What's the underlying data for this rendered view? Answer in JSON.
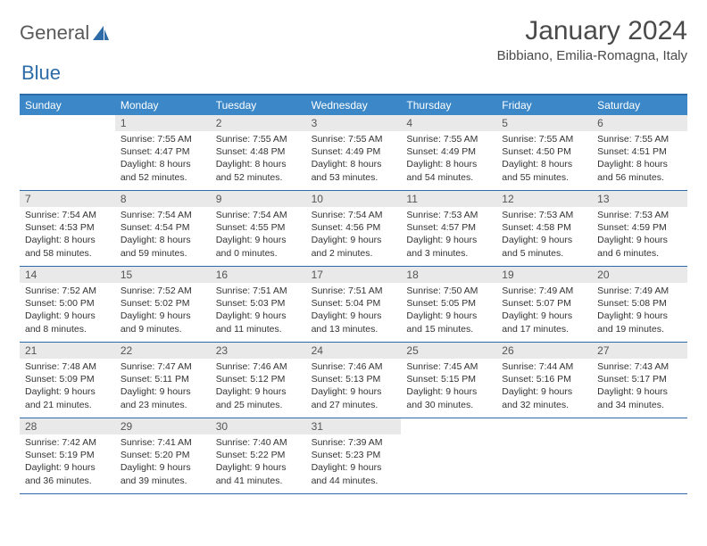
{
  "logo": {
    "text1": "General",
    "text2": "Blue"
  },
  "header": {
    "month": "January 2024",
    "location": "Bibbiano, Emilia-Romagna, Italy"
  },
  "colors": {
    "header_bg": "#3b87c8",
    "border": "#2d6ca8",
    "daynum_bg": "#e9e9e9",
    "text": "#333333"
  },
  "days": [
    "Sunday",
    "Monday",
    "Tuesday",
    "Wednesday",
    "Thursday",
    "Friday",
    "Saturday"
  ],
  "weeks": [
    [
      null,
      {
        "n": "1",
        "sr": "7:55 AM",
        "ss": "4:47 PM",
        "dl": "8 hours and 52 minutes."
      },
      {
        "n": "2",
        "sr": "7:55 AM",
        "ss": "4:48 PM",
        "dl": "8 hours and 52 minutes."
      },
      {
        "n": "3",
        "sr": "7:55 AM",
        "ss": "4:49 PM",
        "dl": "8 hours and 53 minutes."
      },
      {
        "n": "4",
        "sr": "7:55 AM",
        "ss": "4:49 PM",
        "dl": "8 hours and 54 minutes."
      },
      {
        "n": "5",
        "sr": "7:55 AM",
        "ss": "4:50 PM",
        "dl": "8 hours and 55 minutes."
      },
      {
        "n": "6",
        "sr": "7:55 AM",
        "ss": "4:51 PM",
        "dl": "8 hours and 56 minutes."
      }
    ],
    [
      {
        "n": "7",
        "sr": "7:54 AM",
        "ss": "4:53 PM",
        "dl": "8 hours and 58 minutes."
      },
      {
        "n": "8",
        "sr": "7:54 AM",
        "ss": "4:54 PM",
        "dl": "8 hours and 59 minutes."
      },
      {
        "n": "9",
        "sr": "7:54 AM",
        "ss": "4:55 PM",
        "dl": "9 hours and 0 minutes."
      },
      {
        "n": "10",
        "sr": "7:54 AM",
        "ss": "4:56 PM",
        "dl": "9 hours and 2 minutes."
      },
      {
        "n": "11",
        "sr": "7:53 AM",
        "ss": "4:57 PM",
        "dl": "9 hours and 3 minutes."
      },
      {
        "n": "12",
        "sr": "7:53 AM",
        "ss": "4:58 PM",
        "dl": "9 hours and 5 minutes."
      },
      {
        "n": "13",
        "sr": "7:53 AM",
        "ss": "4:59 PM",
        "dl": "9 hours and 6 minutes."
      }
    ],
    [
      {
        "n": "14",
        "sr": "7:52 AM",
        "ss": "5:00 PM",
        "dl": "9 hours and 8 minutes."
      },
      {
        "n": "15",
        "sr": "7:52 AM",
        "ss": "5:02 PM",
        "dl": "9 hours and 9 minutes."
      },
      {
        "n": "16",
        "sr": "7:51 AM",
        "ss": "5:03 PM",
        "dl": "9 hours and 11 minutes."
      },
      {
        "n": "17",
        "sr": "7:51 AM",
        "ss": "5:04 PM",
        "dl": "9 hours and 13 minutes."
      },
      {
        "n": "18",
        "sr": "7:50 AM",
        "ss": "5:05 PM",
        "dl": "9 hours and 15 minutes."
      },
      {
        "n": "19",
        "sr": "7:49 AM",
        "ss": "5:07 PM",
        "dl": "9 hours and 17 minutes."
      },
      {
        "n": "20",
        "sr": "7:49 AM",
        "ss": "5:08 PM",
        "dl": "9 hours and 19 minutes."
      }
    ],
    [
      {
        "n": "21",
        "sr": "7:48 AM",
        "ss": "5:09 PM",
        "dl": "9 hours and 21 minutes."
      },
      {
        "n": "22",
        "sr": "7:47 AM",
        "ss": "5:11 PM",
        "dl": "9 hours and 23 minutes."
      },
      {
        "n": "23",
        "sr": "7:46 AM",
        "ss": "5:12 PM",
        "dl": "9 hours and 25 minutes."
      },
      {
        "n": "24",
        "sr": "7:46 AM",
        "ss": "5:13 PM",
        "dl": "9 hours and 27 minutes."
      },
      {
        "n": "25",
        "sr": "7:45 AM",
        "ss": "5:15 PM",
        "dl": "9 hours and 30 minutes."
      },
      {
        "n": "26",
        "sr": "7:44 AM",
        "ss": "5:16 PM",
        "dl": "9 hours and 32 minutes."
      },
      {
        "n": "27",
        "sr": "7:43 AM",
        "ss": "5:17 PM",
        "dl": "9 hours and 34 minutes."
      }
    ],
    [
      {
        "n": "28",
        "sr": "7:42 AM",
        "ss": "5:19 PM",
        "dl": "9 hours and 36 minutes."
      },
      {
        "n": "29",
        "sr": "7:41 AM",
        "ss": "5:20 PM",
        "dl": "9 hours and 39 minutes."
      },
      {
        "n": "30",
        "sr": "7:40 AM",
        "ss": "5:22 PM",
        "dl": "9 hours and 41 minutes."
      },
      {
        "n": "31",
        "sr": "7:39 AM",
        "ss": "5:23 PM",
        "dl": "9 hours and 44 minutes."
      },
      null,
      null,
      null
    ]
  ],
  "labels": {
    "sunrise": "Sunrise: ",
    "sunset": "Sunset: ",
    "daylight": "Daylight: "
  }
}
